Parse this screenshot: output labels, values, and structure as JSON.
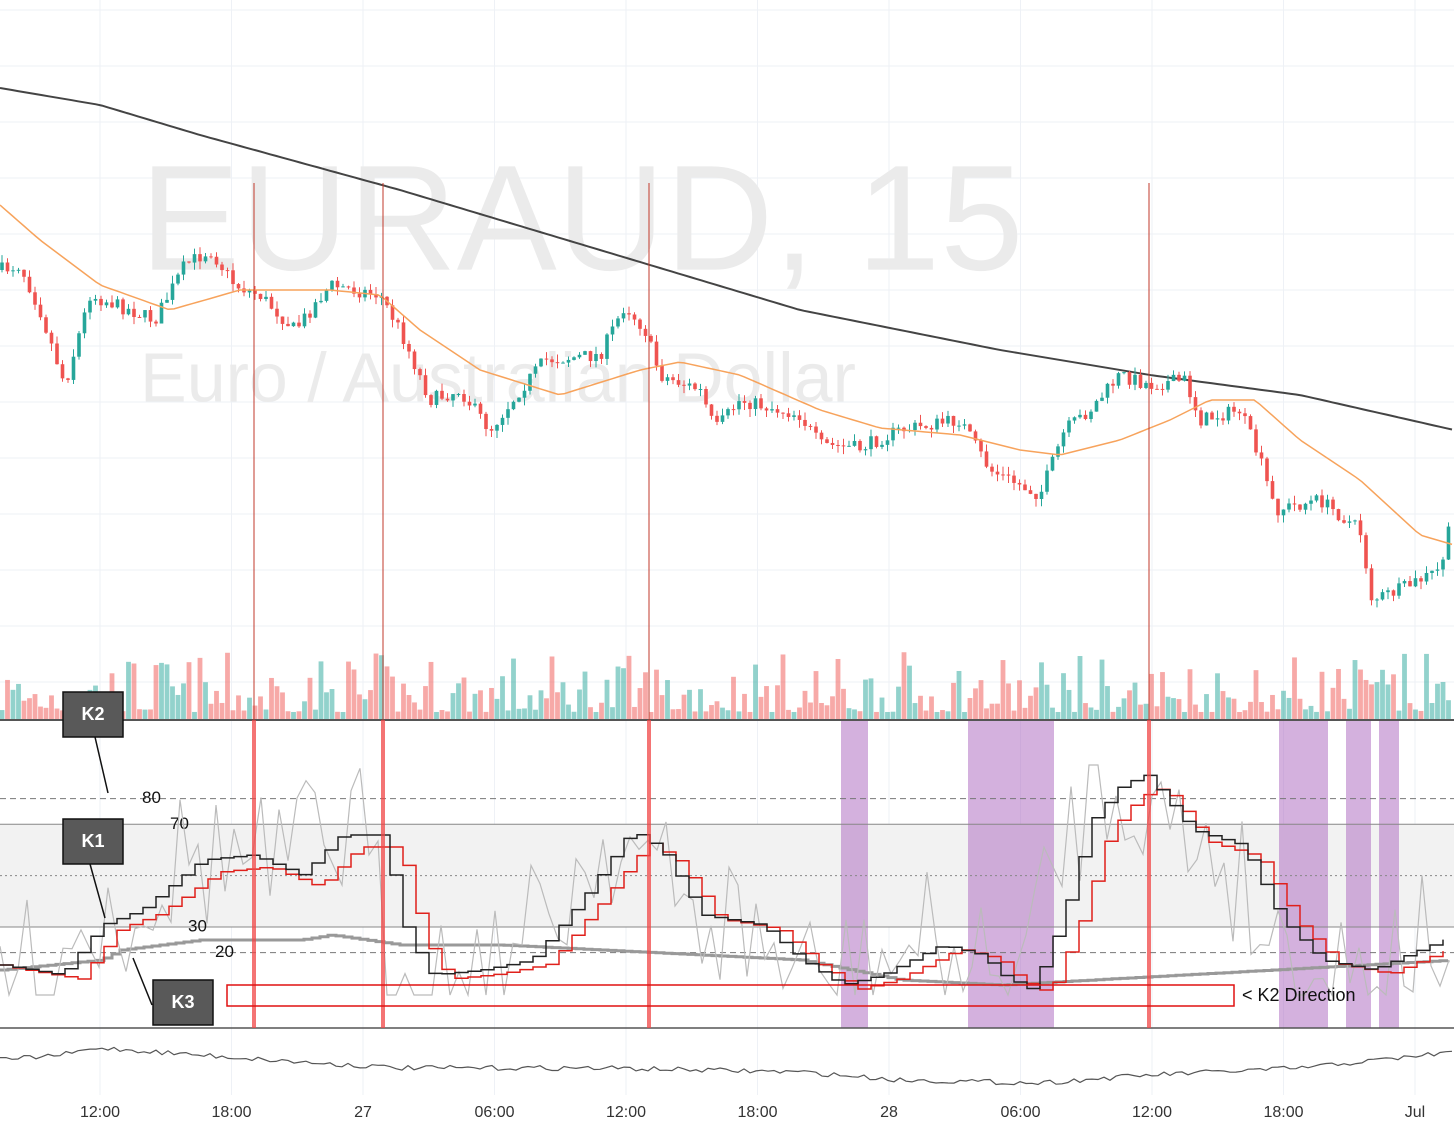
{
  "watermark": {
    "symbol": "EURAUD, 15",
    "description": "Euro / Australian Dollar"
  },
  "annotations": {
    "k2": "K2",
    "k1": "K1",
    "k3": "K3",
    "direction": "< K2 Direction"
  },
  "levels": [
    80,
    70,
    30,
    20
  ],
  "x_axis": [
    "12:00",
    "18:00",
    "27",
    "06:00",
    "12:00",
    "18:00",
    "28",
    "06:00",
    "12:00",
    "18:00",
    "Jul"
  ]
}
